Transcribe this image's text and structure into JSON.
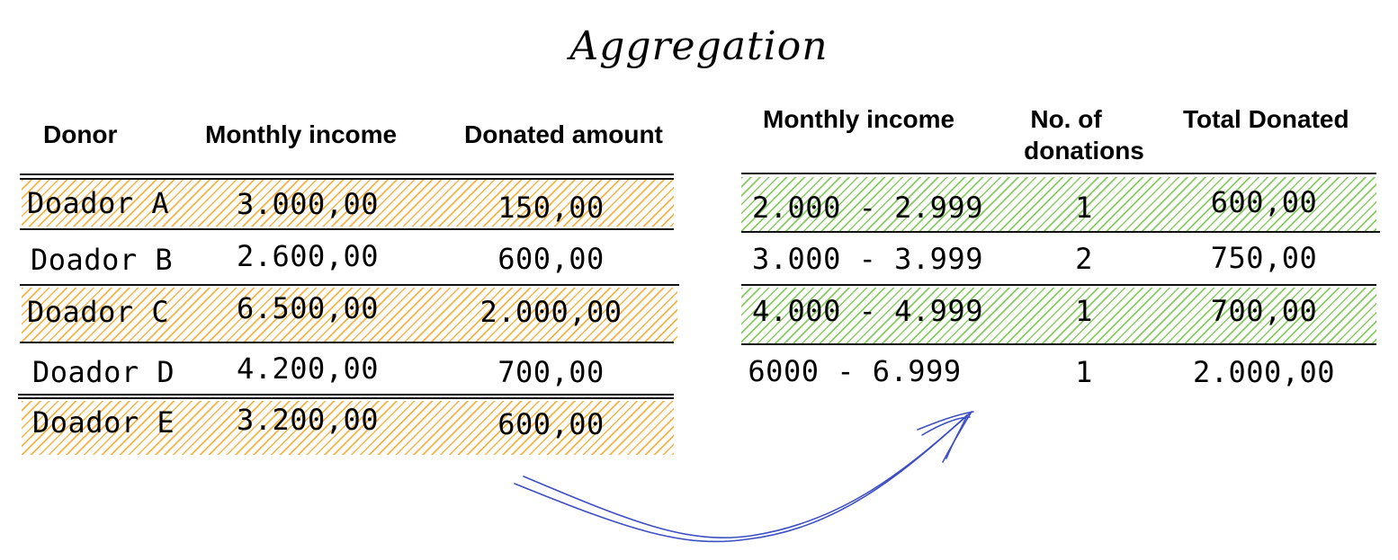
{
  "title": "Aggregation",
  "left_table": {
    "headers": {
      "donor": "Donor",
      "income": "Monthly income",
      "amount": "Donated amount"
    },
    "rows": [
      {
        "donor": "Doador A",
        "income": "3.000,00",
        "amount": "150,00",
        "highlight": true
      },
      {
        "donor": "Doador B",
        "income": "2.600,00",
        "amount": "600,00",
        "highlight": false
      },
      {
        "donor": "Doador C",
        "income": "6.500,00",
        "amount": "2.000,00",
        "highlight": true
      },
      {
        "donor": "Doador D",
        "income": "4.200,00",
        "amount": "700,00",
        "highlight": false
      },
      {
        "donor": "Doador E",
        "income": "3.200,00",
        "amount": "600,00",
        "highlight": true
      }
    ],
    "highlight_color": "#f5a623"
  },
  "right_table": {
    "headers": {
      "range": "Monthly income",
      "count_line1": "No. of",
      "count_line2": "donations",
      "total": "Total Donated"
    },
    "rows": [
      {
        "range": "2.000 - 2.999",
        "count": "1",
        "total": "600,00",
        "highlight": true
      },
      {
        "range": "3.000 - 3.999",
        "count": "2",
        "total": "750,00",
        "highlight": false
      },
      {
        "range": "4.000 - 4.999",
        "count": "1",
        "total": "700,00",
        "highlight": true
      },
      {
        "range": "6000 - 6.999",
        "count": "1",
        "total": "2.000,00",
        "highlight": false
      }
    ],
    "highlight_color": "#7ac74f"
  },
  "arrow_color": "#3d4fc4"
}
